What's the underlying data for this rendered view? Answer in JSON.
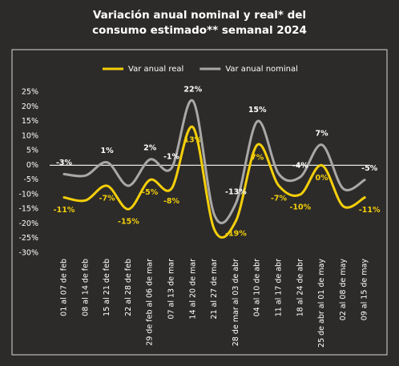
{
  "chart_data": {
    "type": "line",
    "title": [
      "Variación anual nominal y real* del",
      "consumo estimado** semanal 2024"
    ],
    "categories": [
      "01 al 07 de feb",
      "08 al 14 de feb",
      "15 al 21 de feb",
      "22 al 28 de feb",
      "29 de feb al 06 de mar",
      "07 al 13 de mar",
      "14 al 20 de mar",
      "21 al 27 de mar",
      "28 de mar al 03 de abr",
      "04 al 10 de abr",
      "11 al 17 de abr",
      "18 al 24 de abr",
      "25 de abr al 01 de may",
      "02 al 08 de may",
      "09 al 15 de may"
    ],
    "series": [
      {
        "name": "Var anual real",
        "color": "#f5cf0a",
        "values": [
          -11,
          -12,
          -7,
          -15,
          -5,
          -8,
          13,
          -22,
          -19,
          7,
          -7,
          -10,
          0,
          -14,
          -11
        ],
        "value_labels": [
          "-11%",
          null,
          "-7%",
          "-15%",
          "-5%",
          "-8%",
          "13%",
          null,
          "-19%",
          "7%",
          "-7%",
          "-10%",
          "0%",
          null,
          "-11%"
        ],
        "label_position": "below"
      },
      {
        "name": "Var anual nominal",
        "color": "#a9a8a6",
        "values": [
          -3,
          -3.5,
          1,
          -7,
          2,
          -1,
          22,
          -17,
          -13,
          15,
          -3,
          -4,
          7,
          -8,
          -5
        ],
        "value_labels": [
          "-3%",
          null,
          "1%",
          null,
          "2%",
          "-1%",
          "22%",
          null,
          "-13%",
          "15%",
          null,
          "-4%",
          "7%",
          null,
          "-5%"
        ],
        "label_position": "above"
      }
    ],
    "ylim": [
      -30,
      25
    ],
    "yticks": [
      {
        "value": 25,
        "label": "25%"
      },
      {
        "value": 20,
        "label": "20%"
      },
      {
        "value": 15,
        "label": "15%"
      },
      {
        "value": 10,
        "label": "10%"
      },
      {
        "value": 5,
        "label": "5%"
      },
      {
        "value": 0,
        "label": "0%"
      },
      {
        "value": -5,
        "label": "-5%"
      },
      {
        "value": -10,
        "label": "-10%"
      },
      {
        "value": -15,
        "label": "-15%"
      },
      {
        "value": -20,
        "label": "-20%"
      },
      {
        "value": -25,
        "label": "-25%"
      },
      {
        "value": -30,
        "label": "-30%"
      }
    ],
    "zero_line": true,
    "legend": "top"
  }
}
